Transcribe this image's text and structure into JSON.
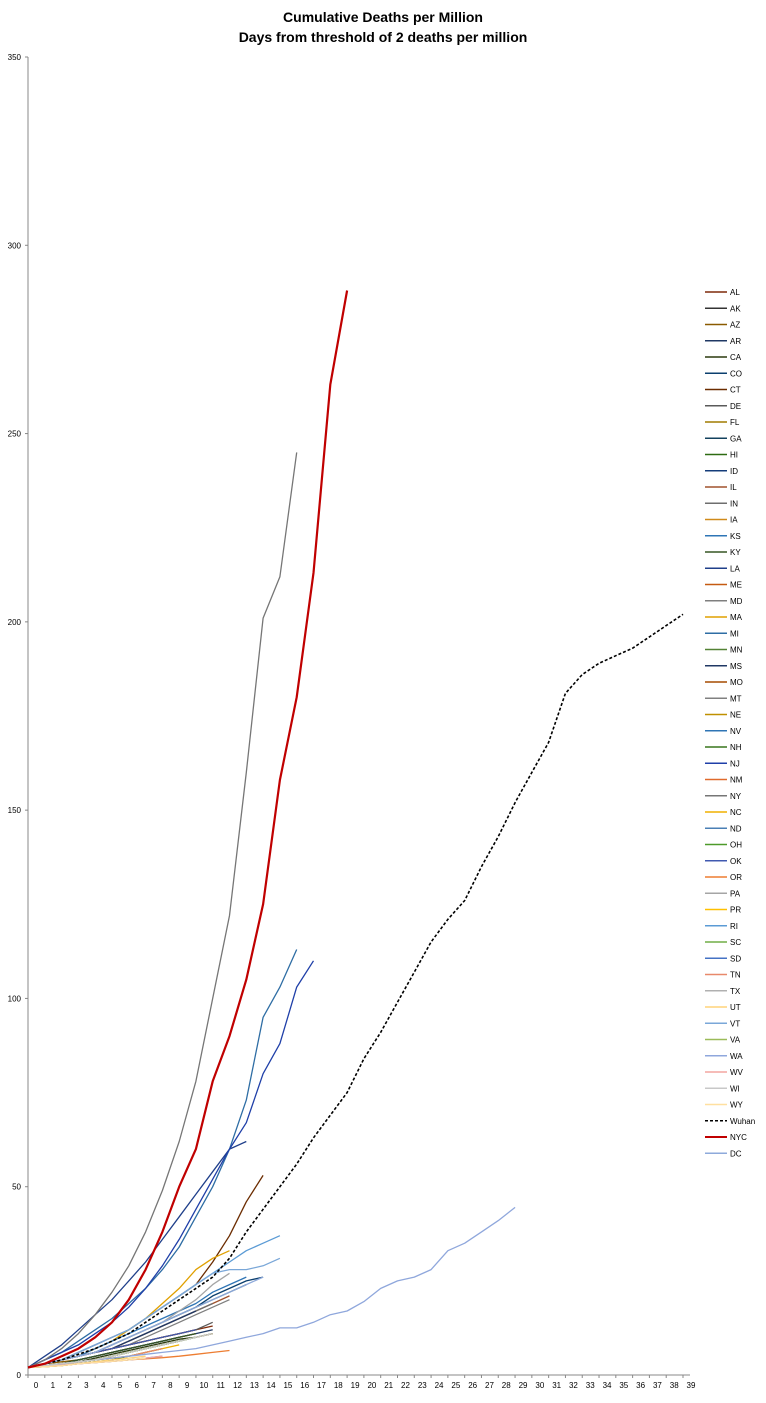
{
  "chart_data": {
    "type": "line",
    "title": "Cumulative Deaths per Million",
    "subtitle": "Days from threshold of 2 deaths per million",
    "xlabel": "",
    "ylabel": "",
    "xlim": [
      0,
      39
    ],
    "ylim": [
      0,
      350
    ],
    "x_ticks": [
      "0",
      "1",
      "2",
      "3",
      "4",
      "5",
      "6",
      "7",
      "8",
      "9",
      "10",
      "11",
      "12",
      "13",
      "14",
      "15",
      "16",
      "17",
      "18",
      "19",
      "20",
      "21",
      "22",
      "23",
      "24",
      "25",
      "26",
      "27",
      "28",
      "29",
      "30",
      "31",
      "32",
      "33",
      "34",
      "35",
      "36",
      "37",
      "38",
      "39"
    ],
    "y_ticks": [
      "0",
      "50",
      "100",
      "150",
      "200",
      "250",
      "300",
      "350"
    ],
    "grid": false,
    "legend_position": "right",
    "series": [
      {
        "name": "AL",
        "color": "#7f2a0a",
        "values": [
          2,
          3,
          4,
          5,
          6,
          7,
          8,
          9,
          10,
          11,
          12,
          13
        ]
      },
      {
        "name": "AK",
        "color": "#333333",
        "values": [
          2,
          2.5,
          3,
          3.5,
          4,
          5,
          6,
          7,
          8
        ]
      },
      {
        "name": "AZ",
        "color": "#8a5a00",
        "values": [
          2,
          3,
          3.5,
          4,
          5,
          6,
          7,
          8,
          9,
          10,
          11
        ]
      },
      {
        "name": "AR",
        "color": "#1f3864",
        "values": [
          2,
          2.5,
          3,
          4,
          5,
          6,
          7,
          8,
          9,
          10,
          11,
          12
        ]
      },
      {
        "name": "CA",
        "color": "#2b3a0f",
        "values": [
          2,
          2.5,
          3,
          3.5,
          4.5,
          5.5,
          6.5,
          7.5,
          8.5,
          9.5,
          10,
          11
        ]
      },
      {
        "name": "CO",
        "color": "#0b3f6e",
        "values": [
          2,
          3,
          4,
          5,
          6,
          8,
          10,
          12,
          14,
          16,
          18,
          21,
          23,
          25,
          26
        ]
      },
      {
        "name": "CT",
        "color": "#6b2c00",
        "values": [
          2,
          3,
          4,
          6,
          8,
          10,
          12,
          15,
          18,
          21,
          24,
          30,
          37,
          46,
          53
        ]
      },
      {
        "name": "DE",
        "color": "#5a5a5a",
        "values": [
          2,
          3,
          4,
          5,
          6,
          7,
          8,
          9,
          10,
          11,
          12,
          14
        ]
      },
      {
        "name": "FL",
        "color": "#a07c00",
        "values": [
          2,
          2.5,
          3,
          3.5,
          4,
          5,
          6,
          7,
          8,
          9,
          10,
          11
        ]
      },
      {
        "name": "GA",
        "color": "#13415e",
        "values": [
          2,
          3,
          4,
          5,
          6,
          8,
          10,
          12,
          14,
          16,
          18,
          20,
          22,
          24
        ]
      },
      {
        "name": "HI",
        "color": "#2e6b12",
        "values": [
          2,
          2.2,
          2.5,
          3,
          3.5,
          4,
          5,
          6,
          7
        ]
      },
      {
        "name": "ID",
        "color": "#143c7a",
        "values": [
          2,
          2.5,
          3,
          4,
          5,
          6,
          7,
          8,
          9,
          10
        ]
      },
      {
        "name": "IL",
        "color": "#a0522d",
        "values": [
          2,
          3,
          4,
          5,
          6,
          7,
          9,
          11,
          13,
          15,
          17,
          19,
          21
        ]
      },
      {
        "name": "IN",
        "color": "#6e6e6e",
        "values": [
          2,
          3,
          4,
          5,
          6,
          7,
          9,
          11,
          13,
          15,
          17,
          19
        ]
      },
      {
        "name": "IA",
        "color": "#d08a1a",
        "values": [
          2,
          2.5,
          3,
          3.5,
          4,
          5,
          6,
          7,
          8,
          9
        ]
      },
      {
        "name": "KS",
        "color": "#2e75b6",
        "values": [
          2,
          2.5,
          3,
          3.5,
          4,
          5,
          6,
          7,
          8,
          9
        ]
      },
      {
        "name": "KY",
        "color": "#375623",
        "values": [
          2,
          2.5,
          3,
          4,
          5,
          6,
          7,
          8,
          9,
          10,
          11
        ]
      },
      {
        "name": "LA",
        "color": "#1f3f8a",
        "values": [
          2,
          5,
          8,
          12,
          16,
          20,
          25,
          30,
          36,
          42,
          48,
          54,
          60,
          62
        ]
      },
      {
        "name": "ME",
        "color": "#c55a11",
        "values": [
          2,
          2.5,
          3,
          3.5,
          4,
          5,
          6,
          7,
          8
        ]
      },
      {
        "name": "MD",
        "color": "#7f7f7f",
        "values": [
          2,
          3,
          4,
          5,
          6,
          7,
          8,
          10,
          12,
          14,
          16,
          18,
          20
        ]
      },
      {
        "name": "MA",
        "color": "#e0a000",
        "values": [
          2,
          3,
          4,
          5,
          7,
          9,
          12,
          15,
          19,
          23,
          28,
          31,
          33
        ]
      },
      {
        "name": "MI",
        "color": "#2e6da4",
        "values": [
          2,
          4,
          6,
          9,
          12,
          15,
          19,
          23,
          28,
          34,
          42,
          50,
          60,
          73,
          95,
          103,
          113
        ]
      },
      {
        "name": "MN",
        "color": "#548235",
        "values": [
          2,
          2.5,
          3,
          3.5,
          4,
          5,
          6,
          7,
          8,
          9,
          10
        ]
      },
      {
        "name": "MS",
        "color": "#203864",
        "values": [
          2,
          3,
          4,
          5,
          6,
          7,
          9,
          11,
          13,
          15,
          17
        ]
      },
      {
        "name": "MO",
        "color": "#a64b00",
        "values": [
          2,
          3,
          4,
          5,
          6,
          7,
          8,
          9,
          10,
          11,
          12
        ]
      },
      {
        "name": "MT",
        "color": "#808080",
        "values": [
          2,
          2.5,
          3,
          3.5,
          4,
          5,
          6,
          7
        ]
      },
      {
        "name": "NE",
        "color": "#bf9000",
        "values": [
          2,
          2.5,
          3,
          3.5,
          4,
          5,
          6,
          7,
          8,
          9
        ]
      },
      {
        "name": "NV",
        "color": "#2f75b5",
        "values": [
          2,
          3,
          4,
          5,
          7,
          9,
          11,
          13,
          15,
          17,
          19,
          22,
          24,
          26
        ]
      },
      {
        "name": "NH",
        "color": "#38761d",
        "values": [
          2,
          2.5,
          3,
          3.5,
          4,
          5,
          6,
          7,
          8,
          9
        ]
      },
      {
        "name": "NJ",
        "color": "#1f3fa8",
        "values": [
          2,
          4,
          6,
          8,
          11,
          14,
          18,
          23,
          29,
          36,
          44,
          52,
          60,
          67,
          80,
          88,
          103,
          110
        ]
      },
      {
        "name": "NM",
        "color": "#e06a2c",
        "values": [
          2,
          2.5,
          3,
          3.5,
          4,
          5,
          6,
          7,
          8,
          9
        ]
      },
      {
        "name": "NY",
        "color": "#767676",
        "values": [
          2,
          4,
          7,
          11,
          16,
          22,
          29,
          38,
          49,
          62,
          78,
          100,
          122,
          160,
          201,
          212,
          245
        ]
      },
      {
        "name": "NC",
        "color": "#f0b000",
        "values": [
          2,
          2.5,
          3,
          3.5,
          4,
          4.5,
          5,
          6,
          7,
          8
        ]
      },
      {
        "name": "ND",
        "color": "#4a7fb5",
        "values": [
          2,
          2.5,
          3,
          3.5,
          4,
          5,
          6,
          7,
          8
        ]
      },
      {
        "name": "OH",
        "color": "#4e9a2a",
        "values": [
          2,
          2.5,
          3,
          3.5,
          4,
          5,
          6,
          7,
          8,
          9,
          10
        ]
      },
      {
        "name": "OK",
        "color": "#4059b0",
        "values": [
          2,
          3,
          4,
          5,
          6,
          7,
          8,
          9,
          10,
          11,
          12
        ]
      },
      {
        "name": "OR",
        "color": "#ed7d31",
        "values": [
          2,
          2.2,
          2.5,
          3,
          3.3,
          3.6,
          4,
          4.3,
          4.6,
          5,
          5.5,
          6,
          6.5
        ]
      },
      {
        "name": "PA",
        "color": "#a5a5a5",
        "values": [
          2,
          3,
          4,
          5,
          6,
          8,
          10,
          12,
          14,
          17,
          20,
          24,
          27
        ]
      },
      {
        "name": "PR",
        "color": "#ffc000",
        "values": [
          2,
          2.5,
          3,
          3.5,
          4,
          5,
          6,
          7,
          8
        ]
      },
      {
        "name": "RI",
        "color": "#5b9bd5",
        "values": [
          2,
          3,
          4,
          6,
          8,
          10,
          12,
          15,
          18,
          21,
          24,
          27,
          30,
          33,
          35,
          37
        ]
      },
      {
        "name": "SC",
        "color": "#70ad47",
        "values": [
          2,
          2.5,
          3,
          3.5,
          4,
          5,
          6,
          7,
          8,
          9
        ]
      },
      {
        "name": "SD",
        "color": "#4472c4",
        "values": [
          2,
          2.3,
          2.6,
          3,
          3.3,
          3.6,
          4,
          4.5,
          5
        ]
      },
      {
        "name": "TN",
        "color": "#e8896b",
        "values": [
          2,
          2.5,
          3,
          3.5,
          4,
          4.5,
          5,
          6,
          7
        ]
      },
      {
        "name": "TX",
        "color": "#b0b0b0",
        "values": [
          2,
          2.5,
          3,
          3.5,
          4,
          5,
          6,
          7,
          8,
          9,
          10
        ]
      },
      {
        "name": "UT",
        "color": "#ffd37a",
        "values": [
          2,
          2.2,
          2.5,
          3,
          3.5,
          4,
          4.5,
          5
        ]
      },
      {
        "name": "VT",
        "color": "#7aa7d8",
        "values": [
          2,
          3,
          4,
          6,
          8,
          10,
          12,
          15,
          18,
          21,
          24,
          27,
          28,
          28,
          29,
          31
        ]
      },
      {
        "name": "VA",
        "color": "#9bbb59",
        "values": [
          2,
          2.5,
          3,
          3.5,
          4,
          5,
          6,
          7,
          8,
          9,
          10
        ]
      },
      {
        "name": "WA",
        "color": "#8fa7dc",
        "values": [
          2,
          2.5,
          3,
          3.5,
          4,
          4.5,
          5,
          5.5,
          6,
          6.5,
          7,
          8,
          9,
          10,
          11,
          12.5,
          12.5,
          14,
          16,
          17,
          19.5,
          23,
          25,
          26,
          28,
          33,
          35,
          38,
          41,
          44.5
        ]
      },
      {
        "name": "WV",
        "color": "#f4a6a0",
        "values": [
          2,
          2.3,
          2.6,
          3,
          3.3,
          3.6,
          4,
          4.5,
          5
        ]
      },
      {
        "name": "WI",
        "color": "#c8c8c8",
        "values": [
          2,
          2.5,
          3,
          3.5,
          4,
          5,
          6,
          7,
          8,
          9,
          10,
          11
        ]
      },
      {
        "name": "WY",
        "color": "#ffe0a0",
        "values": [
          2,
          2.2,
          2.5,
          3,
          3.3,
          3.6,
          4,
          4.5
        ]
      },
      {
        "name": "Wuhan",
        "color": "#000000",
        "dashed": true,
        "values": [
          2,
          3,
          4,
          5.5,
          7,
          9,
          11,
          14,
          17,
          20,
          23,
          26,
          31,
          38,
          44,
          50,
          56,
          63,
          69,
          75,
          84,
          91,
          99,
          107,
          115,
          121,
          126,
          135,
          143,
          152,
          160,
          168,
          181,
          186,
          189,
          191,
          193,
          196,
          199,
          202
        ]
      },
      {
        "name": "NYC",
        "color": "#c00000",
        "values": [
          2,
          3,
          5,
          7,
          10,
          14,
          20,
          28,
          38,
          50,
          60,
          78,
          90,
          105,
          125,
          158,
          180,
          213,
          263,
          288
        ]
      },
      {
        "name": "DC",
        "color": "#8eaadb",
        "values": [
          2,
          3,
          4,
          5,
          6,
          8,
          10,
          12,
          14,
          16,
          18,
          20,
          22,
          24,
          26
        ]
      }
    ]
  }
}
